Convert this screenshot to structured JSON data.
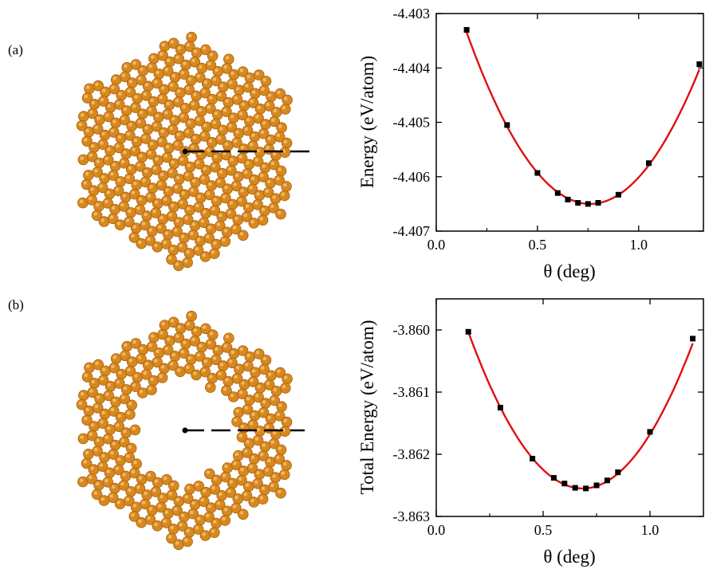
{
  "panels": [
    {
      "label": "(a)",
      "structure": {
        "description_visual": "hexagonal-lattice-flake",
        "has_hole": false,
        "atom_color": "#d7891f"
      }
    },
    {
      "label": "(b)",
      "structure": {
        "description_visual": "hexagonal-lattice-flake-with-hole",
        "has_hole": true,
        "atom_color": "#d7891f"
      }
    }
  ],
  "colors": {
    "fit_line": "#e01010",
    "marker": "#000000",
    "atom": "#d7891f",
    "atom_dark": "#a95f0c"
  },
  "chart_data": [
    {
      "type": "scatter",
      "xlabel": "θ (deg)",
      "ylabel": "Energy (eV/atom)",
      "xlim": [
        0.0,
        1.32
      ],
      "ylim": [
        -4.407,
        -4.403
      ],
      "xticks": [
        0.0,
        0.5,
        1.0
      ],
      "xtick_labels": [
        "0.0",
        "0.5",
        "1.0"
      ],
      "yticks": [
        -4.403,
        -4.404,
        -4.405,
        -4.406,
        -4.407
      ],
      "ytick_labels": [
        "-4.403",
        "-4.404",
        "-4.405",
        "-4.406",
        "-4.407"
      ],
      "grid": false,
      "points": {
        "x": [
          0.15,
          0.35,
          0.5,
          0.6,
          0.65,
          0.7,
          0.75,
          0.8,
          0.9,
          1.05,
          1.3
        ],
        "y": [
          -4.4033,
          -4.40505,
          -4.40593,
          -4.4063,
          -4.40642,
          -4.40648,
          -4.4065,
          -4.40648,
          -4.40633,
          -4.40575,
          -4.40393
        ]
      },
      "fit": {
        "kind": "quadratic",
        "x_min": 0.15,
        "x_max": 1.3,
        "x0": 0.76,
        "y0": -4.4065,
        "a": 0.00848
      }
    },
    {
      "type": "scatter",
      "xlabel": "θ (deg)",
      "ylabel": "Total Energy (eV/atom)",
      "xlim": [
        0.0,
        1.25
      ],
      "ylim": [
        -3.863,
        -3.8595
      ],
      "xticks": [
        0.0,
        0.5,
        1.0
      ],
      "xtick_labels": [
        "0.0",
        "0.5",
        "1.0"
      ],
      "yticks": [
        -3.86,
        -3.861,
        -3.862,
        -3.863
      ],
      "ytick_labels": [
        "-3.860",
        "-3.861",
        "-3.862",
        "-3.863"
      ],
      "grid": false,
      "points": {
        "x": [
          0.15,
          0.3,
          0.45,
          0.55,
          0.6,
          0.65,
          0.7,
          0.75,
          0.8,
          0.85,
          1.0,
          1.2
        ],
        "y": [
          -3.86003,
          -3.86125,
          -3.86207,
          -3.86238,
          -3.86247,
          -3.86254,
          -3.86255,
          -3.8625,
          -3.86242,
          -3.86229,
          -3.86164,
          -3.86014
        ]
      },
      "fit": {
        "kind": "quadratic",
        "x_min": 0.15,
        "x_max": 1.2,
        "x0": 0.685,
        "y0": -3.86255,
        "a": 0.0088
      }
    }
  ]
}
